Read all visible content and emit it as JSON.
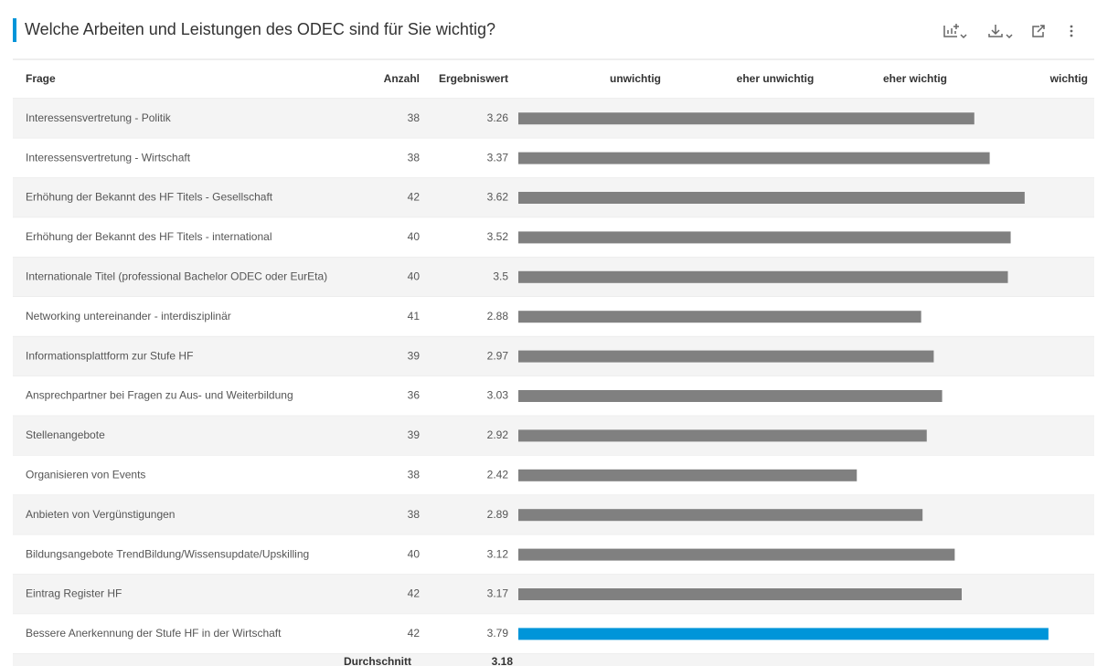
{
  "header": {
    "title": "Welche Arbeiten und Leistungen des ODEC sind für Sie wichtig?"
  },
  "table": {
    "columns": [
      "Frage",
      "Anzahl",
      "Ergebniswert"
    ],
    "scale": {
      "xlim": [
        0,
        4
      ],
      "ticks": [
        {
          "value": 1,
          "label": "unwichtig"
        },
        {
          "value": 2,
          "label": "eher unwichtig"
        },
        {
          "value": 3,
          "label": "eher wichtig"
        },
        {
          "value": 4,
          "label": "wichtig"
        }
      ]
    },
    "bar_color": "#808080",
    "highlight_color": "#0095d9",
    "highlight_row": 13,
    "rows": [
      [
        "Interessensvertretung - Politik",
        38,
        3.26
      ],
      [
        "Interessensvertretung - Wirtschaft",
        38,
        3.37
      ],
      [
        "Erhöhung der Bekannt des HF Titels - Gesellschaft",
        42,
        3.62
      ],
      [
        "Erhöhung der Bekannt des HF Titels - international",
        40,
        3.52
      ],
      [
        "Internationale Titel (professional Bachelor ODEC oder EurEta)",
        40,
        3.5
      ],
      [
        "Networking untereinander - interdisziplinär",
        41,
        2.88
      ],
      [
        "Informationsplattform zur Stufe HF",
        39,
        2.97
      ],
      [
        "Ansprechpartner bei Fragen zu Aus- und Weiterbildung",
        36,
        3.03
      ],
      [
        "Stellenangebote",
        39,
        2.92
      ],
      [
        "Organisieren von Events",
        38,
        2.42
      ],
      [
        "Anbieten von Vergünstigungen",
        38,
        2.89
      ],
      [
        "Bildungsangebote TrendBildung/Wissensupdate/Upskilling",
        40,
        3.12
      ],
      [
        "Eintrag Register HF",
        42,
        3.17
      ],
      [
        "Bessere Anerkennung der Stufe HF in der Wirtschaft",
        42,
        3.79
      ]
    ],
    "footer": {
      "label": "Durchschnitt",
      "value": 3.18
    }
  }
}
